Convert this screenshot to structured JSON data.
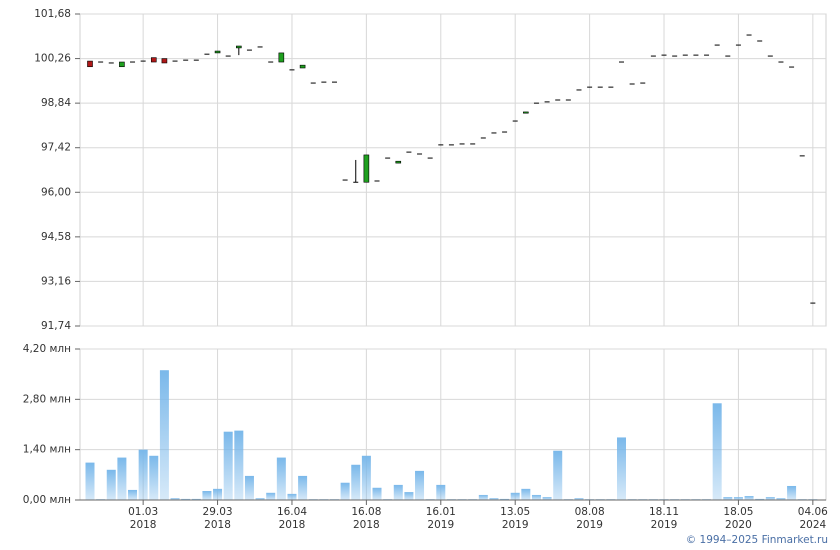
{
  "chart_data": [
    {
      "type": "candlestick",
      "up_color": "#1fa01f",
      "down_color": "#b01818",
      "flat_color": "#000000",
      "ylim": [
        91.74,
        101.68
      ],
      "yticks": [
        {
          "value": 91.74,
          "label": "91,74"
        },
        {
          "value": 93.16,
          "label": "93,16"
        },
        {
          "value": 94.58,
          "label": "94,58"
        },
        {
          "value": 96.0,
          "label": "96,00"
        },
        {
          "value": 97.42,
          "label": "97,42"
        },
        {
          "value": 98.84,
          "label": "98,84"
        },
        {
          "value": 100.26,
          "label": "100,26"
        },
        {
          "value": 101.68,
          "label": "101,68"
        }
      ],
      "grid": true,
      "open": [
        100.18,
        100.15,
        100.12,
        100.0,
        100.15,
        100.18,
        100.29,
        100.26,
        100.18,
        100.21,
        100.21,
        100.4,
        100.44,
        100.34,
        100.6,
        100.53,
        100.63,
        100.15,
        100.15,
        99.9,
        99.96,
        99.48,
        99.51,
        99.51,
        96.39,
        96.32,
        96.32,
        96.36,
        97.09,
        96.93,
        97.28,
        97.22,
        97.09,
        97.51,
        97.51,
        97.54,
        97.54,
        97.73,
        97.89,
        97.92,
        98.27,
        98.52,
        98.84,
        98.88,
        98.94,
        98.94,
        99.26,
        99.35,
        99.35,
        99.35,
        100.15,
        99.45,
        99.48,
        100.34,
        100.37,
        100.34,
        100.37,
        100.37,
        100.37,
        100.69,
        100.34,
        100.69,
        101.01,
        100.82,
        100.34,
        100.15,
        99.99,
        97.16,
        92.47
      ],
      "high": [
        100.18,
        100.15,
        100.12,
        100.15,
        100.15,
        100.18,
        100.29,
        100.26,
        100.18,
        100.21,
        100.21,
        100.4,
        100.5,
        100.34,
        100.66,
        100.53,
        100.63,
        100.15,
        100.44,
        99.9,
        100.05,
        99.48,
        99.51,
        99.51,
        96.39,
        97.03,
        97.19,
        96.36,
        97.09,
        96.99,
        97.28,
        97.22,
        97.09,
        97.51,
        97.51,
        97.54,
        97.54,
        97.73,
        97.89,
        97.92,
        98.27,
        98.56,
        98.84,
        98.88,
        98.94,
        98.94,
        99.26,
        99.35,
        99.35,
        99.35,
        100.15,
        99.45,
        99.48,
        100.34,
        100.37,
        100.34,
        100.37,
        100.37,
        100.37,
        100.69,
        100.34,
        100.69,
        101.01,
        100.82,
        100.34,
        100.15,
        99.99,
        97.16,
        92.47
      ],
      "low": [
        100.0,
        100.15,
        100.12,
        100.0,
        100.15,
        100.18,
        100.15,
        100.12,
        100.18,
        100.21,
        100.21,
        100.4,
        100.44,
        100.34,
        100.37,
        100.53,
        100.63,
        100.15,
        100.15,
        99.9,
        99.96,
        99.48,
        99.51,
        99.51,
        96.39,
        96.32,
        96.32,
        96.36,
        97.09,
        96.93,
        97.28,
        97.22,
        97.09,
        97.51,
        97.51,
        97.54,
        97.54,
        97.73,
        97.89,
        97.92,
        98.27,
        98.52,
        98.84,
        98.88,
        98.94,
        98.94,
        99.26,
        99.35,
        99.35,
        99.35,
        100.15,
        99.45,
        99.48,
        100.34,
        100.37,
        100.34,
        100.37,
        100.37,
        100.37,
        100.69,
        100.34,
        100.69,
        101.01,
        100.82,
        100.34,
        100.15,
        99.99,
        97.16,
        92.47
      ],
      "close": [
        100.0,
        100.15,
        100.12,
        100.15,
        100.15,
        100.18,
        100.15,
        100.12,
        100.18,
        100.21,
        100.21,
        100.4,
        100.5,
        100.34,
        100.66,
        100.53,
        100.63,
        100.15,
        100.44,
        99.9,
        100.05,
        99.48,
        99.51,
        99.51,
        96.39,
        96.32,
        97.19,
        96.36,
        97.09,
        96.99,
        97.28,
        97.22,
        97.09,
        97.51,
        97.51,
        97.54,
        97.54,
        97.73,
        97.89,
        97.92,
        98.27,
        98.56,
        98.84,
        98.88,
        98.94,
        98.94,
        99.26,
        99.35,
        99.35,
        99.35,
        100.15,
        99.45,
        99.48,
        100.34,
        100.37,
        100.34,
        100.37,
        100.37,
        100.37,
        100.69,
        100.34,
        100.69,
        101.01,
        100.82,
        100.34,
        100.15,
        99.99,
        97.16,
        92.47
      ]
    },
    {
      "type": "bar",
      "color": "#7ab8ea",
      "ylim": [
        0,
        4.2
      ],
      "yticks": [
        {
          "value": 0,
          "label": "0,00 млн"
        },
        {
          "value": 1.4,
          "label": "1,40 млн"
        },
        {
          "value": 2.8,
          "label": "2,80 млн"
        },
        {
          "value": 4.2,
          "label": "4,20 млн"
        }
      ],
      "grid": true,
      "categories": [
        null,
        null,
        null,
        null,
        null,
        "01.03\n2018",
        null,
        null,
        null,
        null,
        null,
        null,
        "29.03\n2018",
        null,
        null,
        null,
        null,
        null,
        null,
        "16.04\n2018",
        null,
        null,
        null,
        null,
        null,
        null,
        "16.08\n2018",
        null,
        null,
        null,
        null,
        null,
        null,
        "16.01\n2019",
        null,
        null,
        null,
        null,
        null,
        null,
        "13.05\n2019",
        null,
        null,
        null,
        null,
        null,
        null,
        "08.08\n2019",
        null,
        null,
        null,
        null,
        null,
        null,
        "18.11\n2019",
        null,
        null,
        null,
        null,
        null,
        null,
        "18.05\n2020",
        null,
        null,
        null,
        null,
        null,
        null,
        "04.06\n2024"
      ],
      "values": [
        1.04,
        0.02,
        0.84,
        1.18,
        0.28,
        1.4,
        1.23,
        3.61,
        0.05,
        0.03,
        0.03,
        0.25,
        0.31,
        1.9,
        1.93,
        0.67,
        0.05,
        0.2,
        1.18,
        0.17,
        0.67,
        0.02,
        0.02,
        0.02,
        0.48,
        0.98,
        1.23,
        0.34,
        0.02,
        0.42,
        0.22,
        0.81,
        0.02,
        0.42,
        0.02,
        0.02,
        0.02,
        0.14,
        0.05,
        0.03,
        0.2,
        0.31,
        0.14,
        0.08,
        1.37,
        0.02,
        0.05,
        0.02,
        0.02,
        0.02,
        1.74,
        0.02,
        0.02,
        0.02,
        0.02,
        0.02,
        0.02,
        0.02,
        0.02,
        2.69,
        0.08,
        0.08,
        0.11,
        0.03,
        0.08,
        0.05,
        0.39,
        0.02,
        0.02
      ]
    }
  ],
  "footer": "© 1994–2025 Finmarket.ru"
}
